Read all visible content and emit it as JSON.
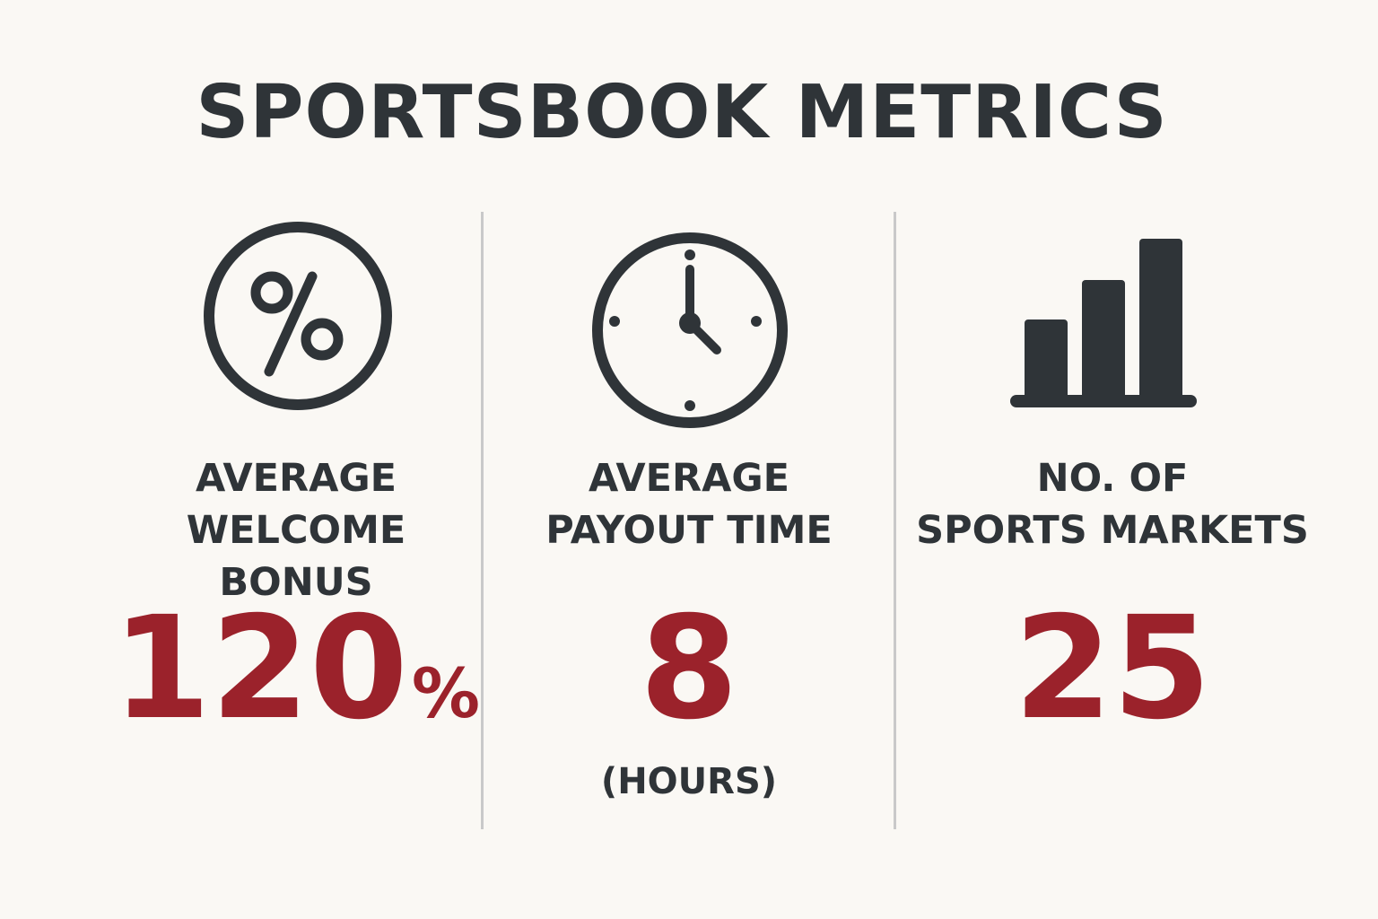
{
  "title": "SPORTSBOOK METRICS",
  "metrics": [
    {
      "icon": "percent-icon",
      "label_line1": "AVERAGE",
      "label_line2": "WELCOME BONUS",
      "value": "120",
      "unit": "%"
    },
    {
      "icon": "clock-icon",
      "label_line1": "AVERAGE",
      "label_line2": "PAYOUT TIME",
      "value": "8",
      "subtext": "(HOURS)"
    },
    {
      "icon": "bar-chart-icon",
      "label_line1": "NO. OF",
      "label_line2": "SPORTS MARKETS",
      "value": "25"
    }
  ],
  "colors": {
    "background": "#faf8f4",
    "text": "#2f3438",
    "accent": "#9b222b",
    "divider": "#c9c9c9"
  }
}
